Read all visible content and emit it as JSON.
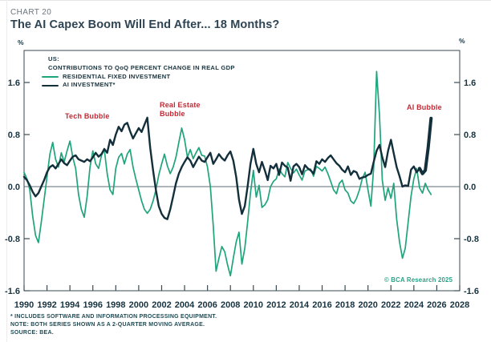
{
  "header": {
    "kicker": "CHART 20",
    "title": "The AI Capex Boom Will End After... 18 Months?"
  },
  "axis": {
    "unit_left": "%",
    "unit_right": "%"
  },
  "legend": {
    "region": "US:",
    "subtitle": "CONTRIBUTIONS TO QoQ PERCENT CHANGE IN REAL GDP",
    "items": [
      {
        "label": "RESIDENTIAL FIXED INVESTMENT",
        "color": "#1fa47c"
      },
      {
        "label": "AI INVESTMENT*",
        "color": "#132f3c"
      }
    ]
  },
  "annotations": {
    "tech": "Tech Bubble",
    "real_estate_line1": "Real Estate",
    "real_estate_line2": "Bubble",
    "ai": "AI Bubble"
  },
  "watermark": "© BCA Research 2025",
  "footnotes": [
    "* INCLUDES SOFTWARE AND INFORMATION PROCESSING EQUIPMENT.",
    "NOTE: BOTH SERIES SHOWN AS A 2-QUARTER MOVING AVERAGE.",
    "SOURCE: BEA."
  ],
  "colors": {
    "residential": "#1fa47c",
    "ai": "#132f3c",
    "annotation_red": "#c02b35",
    "frame": "#3a4a52",
    "zero_line": "#5f6e74",
    "tick_text": "#17333f",
    "watermark_teal": "#2ba186"
  },
  "chart_data": {
    "type": "line",
    "title": "US: Contributions to QoQ percent change in real GDP",
    "ylabel": "%",
    "x_axis": {
      "range": [
        1990,
        2028
      ],
      "ticks": [
        1990,
        1992,
        1994,
        1996,
        1998,
        2000,
        2002,
        2004,
        2006,
        2008,
        2010,
        2012,
        2014,
        2016,
        2018,
        2020,
        2022,
        2024,
        2026,
        2028
      ]
    },
    "y_axis": {
      "range": [
        -1.6,
        2.1
      ],
      "ticks": [
        1.6,
        0.8,
        0.0,
        -0.8,
        -1.6
      ],
      "unit": "%"
    },
    "grid": false,
    "legend_position": "top-left",
    "series": [
      {
        "name": "RESIDENTIAL FIXED INVESTMENT",
        "color": "#1fa47c",
        "width": 1.7,
        "points": [
          [
            1990,
            0.22
          ],
          [
            1990.25,
            0.12
          ],
          [
            1990.5,
            -0.05
          ],
          [
            1990.75,
            -0.45
          ],
          [
            1991,
            -0.75
          ],
          [
            1991.25,
            -0.86
          ],
          [
            1991.5,
            -0.55
          ],
          [
            1991.75,
            -0.2
          ],
          [
            1992,
            0.15
          ],
          [
            1992.25,
            0.5
          ],
          [
            1992.5,
            0.68
          ],
          [
            1992.75,
            0.42
          ],
          [
            1993,
            0.3
          ],
          [
            1993.25,
            0.52
          ],
          [
            1993.5,
            0.38
          ],
          [
            1993.75,
            0.55
          ],
          [
            1994,
            0.7
          ],
          [
            1994.25,
            0.45
          ],
          [
            1994.5,
            0.28
          ],
          [
            1994.75,
            -0.12
          ],
          [
            1995,
            -0.35
          ],
          [
            1995.25,
            -0.47
          ],
          [
            1995.5,
            -0.15
          ],
          [
            1995.75,
            0.3
          ],
          [
            1996,
            0.55
          ],
          [
            1996.25,
            0.35
          ],
          [
            1996.5,
            0.28
          ],
          [
            1996.75,
            0.48
          ],
          [
            1997,
            0.57
          ],
          [
            1997.25,
            0.2
          ],
          [
            1997.5,
            -0.05
          ],
          [
            1997.75,
            -0.12
          ],
          [
            1998,
            0.28
          ],
          [
            1998.25,
            0.45
          ],
          [
            1998.5,
            0.51
          ],
          [
            1998.75,
            0.35
          ],
          [
            1999,
            0.5
          ],
          [
            1999.25,
            0.57
          ],
          [
            1999.5,
            0.3
          ],
          [
            1999.75,
            0.12
          ],
          [
            2000,
            -0.05
          ],
          [
            2000.25,
            -0.22
          ],
          [
            2000.5,
            -0.35
          ],
          [
            2000.75,
            -0.41
          ],
          [
            2001,
            -0.35
          ],
          [
            2001.25,
            -0.22
          ],
          [
            2001.5,
            -0.05
          ],
          [
            2001.75,
            0.18
          ],
          [
            2002,
            0.35
          ],
          [
            2002.25,
            0.5
          ],
          [
            2002.5,
            0.32
          ],
          [
            2002.75,
            0.2
          ],
          [
            2003,
            0.3
          ],
          [
            2003.25,
            0.45
          ],
          [
            2003.5,
            0.68
          ],
          [
            2003.75,
            0.9
          ],
          [
            2004,
            0.72
          ],
          [
            2004.25,
            0.45
          ],
          [
            2004.5,
            0.57
          ],
          [
            2004.75,
            0.43
          ],
          [
            2005,
            0.52
          ],
          [
            2005.25,
            0.6
          ],
          [
            2005.5,
            0.48
          ],
          [
            2005.75,
            0.47
          ],
          [
            2006,
            0.3
          ],
          [
            2006.25,
            0
          ],
          [
            2006.5,
            -0.6
          ],
          [
            2006.75,
            -1.3
          ],
          [
            2007,
            -1.1
          ],
          [
            2007.25,
            -0.92
          ],
          [
            2007.5,
            -1
          ],
          [
            2007.75,
            -1.2
          ],
          [
            2008,
            -1.37
          ],
          [
            2008.25,
            -1.1
          ],
          [
            2008.5,
            -0.85
          ],
          [
            2008.75,
            -0.7
          ],
          [
            2009,
            -1.19
          ],
          [
            2009.25,
            -0.95
          ],
          [
            2009.5,
            -0.55
          ],
          [
            2009.75,
            -0.1
          ],
          [
            2010,
            0.25
          ],
          [
            2010.25,
            -0.16
          ],
          [
            2010.5,
            0.02
          ],
          [
            2010.75,
            -0.32
          ],
          [
            2011,
            -0.28
          ],
          [
            2011.25,
            -0.2
          ],
          [
            2011.5,
            0
          ],
          [
            2011.75,
            0.08
          ],
          [
            2012,
            0.12
          ],
          [
            2012.25,
            0.27
          ],
          [
            2012.5,
            0.2
          ],
          [
            2012.75,
            0.15
          ],
          [
            2013,
            0.37
          ],
          [
            2013.25,
            0.28
          ],
          [
            2013.5,
            0.21
          ],
          [
            2013.75,
            0.27
          ],
          [
            2014,
            0.18
          ],
          [
            2014.25,
            0.1
          ],
          [
            2014.5,
            0.24
          ],
          [
            2014.75,
            0.26
          ],
          [
            2015,
            0.27
          ],
          [
            2015.25,
            0.16
          ],
          [
            2015.5,
            0.31
          ],
          [
            2015.75,
            0.28
          ],
          [
            2016,
            0.24
          ],
          [
            2016.25,
            0.3
          ],
          [
            2016.5,
            0.2
          ],
          [
            2016.75,
            0.08
          ],
          [
            2017,
            -0.05
          ],
          [
            2017.25,
            -0.11
          ],
          [
            2017.5,
            0.05
          ],
          [
            2017.75,
            0.1
          ],
          [
            2018,
            -0.05
          ],
          [
            2018.25,
            -0.1
          ],
          [
            2018.5,
            -0.22
          ],
          [
            2018.75,
            -0.26
          ],
          [
            2019,
            -0.18
          ],
          [
            2019.25,
            -0.05
          ],
          [
            2019.5,
            0.12
          ],
          [
            2019.75,
            0.22
          ],
          [
            2020,
            -0.05
          ],
          [
            2020.25,
            -0.3
          ],
          [
            2020.5,
            0.3
          ],
          [
            2020.75,
            1.77
          ],
          [
            2021,
            1.1
          ],
          [
            2021.25,
            0.1
          ],
          [
            2021.5,
            -0.21
          ],
          [
            2021.75,
            -0.02
          ],
          [
            2022,
            -0.18
          ],
          [
            2022.25,
            0.05
          ],
          [
            2022.5,
            -0.5
          ],
          [
            2022.75,
            -0.85
          ],
          [
            2023,
            -1.1
          ],
          [
            2023.25,
            -0.95
          ],
          [
            2023.5,
            -0.55
          ],
          [
            2023.75,
            -0.15
          ],
          [
            2024,
            0.12
          ],
          [
            2024.25,
            0.28
          ],
          [
            2024.5,
            -0.02
          ],
          [
            2024.75,
            -0.1
          ],
          [
            2025,
            0.05
          ],
          [
            2025.25,
            -0.05
          ],
          [
            2025.5,
            -0.12
          ]
        ]
      },
      {
        "name": "AI INVESTMENT*",
        "color": "#132f3c",
        "width": 2.4,
        "emphasis": {
          "from": 2024.5,
          "width": 4
        },
        "points": [
          [
            1990,
            0.15
          ],
          [
            1990.25,
            0.1
          ],
          [
            1990.5,
            0.02
          ],
          [
            1990.75,
            -0.08
          ],
          [
            1991,
            -0.15
          ],
          [
            1991.25,
            -0.1
          ],
          [
            1991.5,
            0
          ],
          [
            1991.75,
            0.1
          ],
          [
            1992,
            0.22
          ],
          [
            1992.25,
            0.3
          ],
          [
            1992.5,
            0.33
          ],
          [
            1992.75,
            0.28
          ],
          [
            1993,
            0.35
          ],
          [
            1993.25,
            0.42
          ],
          [
            1993.5,
            0.36
          ],
          [
            1993.75,
            0.33
          ],
          [
            1994,
            0.4
          ],
          [
            1994.25,
            0.46
          ],
          [
            1994.5,
            0.48
          ],
          [
            1994.75,
            0.42
          ],
          [
            1995,
            0.4
          ],
          [
            1995.25,
            0.38
          ],
          [
            1995.5,
            0.42
          ],
          [
            1995.75,
            0.39
          ],
          [
            1996,
            0.45
          ],
          [
            1996.25,
            0.52
          ],
          [
            1996.5,
            0.46
          ],
          [
            1996.75,
            0.5
          ],
          [
            1997,
            0.58
          ],
          [
            1997.25,
            0.52
          ],
          [
            1997.5,
            0.72
          ],
          [
            1997.75,
            0.64
          ],
          [
            1998,
            0.8
          ],
          [
            1998.25,
            0.92
          ],
          [
            1998.5,
            0.85
          ],
          [
            1998.75,
            0.95
          ],
          [
            1999,
            0.98
          ],
          [
            1999.25,
            0.85
          ],
          [
            1999.5,
            0.74
          ],
          [
            1999.75,
            0.82
          ],
          [
            2000,
            0.9
          ],
          [
            2000.25,
            0.84
          ],
          [
            2000.5,
            0.95
          ],
          [
            2000.75,
            1.06
          ],
          [
            2001,
            0.6
          ],
          [
            2001.25,
            0.25
          ],
          [
            2001.5,
            -0.05
          ],
          [
            2001.75,
            -0.3
          ],
          [
            2002,
            -0.42
          ],
          [
            2002.25,
            -0.48
          ],
          [
            2002.5,
            -0.5
          ],
          [
            2002.75,
            -0.35
          ],
          [
            2003,
            -0.15
          ],
          [
            2003.25,
            0.05
          ],
          [
            2003.5,
            0.2
          ],
          [
            2003.75,
            0.3
          ],
          [
            2004,
            0.38
          ],
          [
            2004.25,
            0.45
          ],
          [
            2004.5,
            0.4
          ],
          [
            2004.75,
            0.3
          ],
          [
            2005,
            0.38
          ],
          [
            2005.25,
            0.46
          ],
          [
            2005.5,
            0.4
          ],
          [
            2005.75,
            0.38
          ],
          [
            2006,
            0.45
          ],
          [
            2006.25,
            0.52
          ],
          [
            2006.5,
            0.35
          ],
          [
            2006.75,
            0.42
          ],
          [
            2007,
            0.5
          ],
          [
            2007.25,
            0.44
          ],
          [
            2007.5,
            0.4
          ],
          [
            2007.75,
            0.48
          ],
          [
            2008,
            0.54
          ],
          [
            2008.25,
            0.4
          ],
          [
            2008.5,
            0.15
          ],
          [
            2008.75,
            -0.2
          ],
          [
            2009,
            -0.42
          ],
          [
            2009.25,
            -0.3
          ],
          [
            2009.5,
            0
          ],
          [
            2009.75,
            0.35
          ],
          [
            2010,
            0.58
          ],
          [
            2010.25,
            0.35
          ],
          [
            2010.5,
            0.22
          ],
          [
            2010.75,
            0.38
          ],
          [
            2011,
            0.25
          ],
          [
            2011.25,
            0.1
          ],
          [
            2011.5,
            0.32
          ],
          [
            2011.75,
            0.28
          ],
          [
            2012,
            0.35
          ],
          [
            2012.25,
            0.18
          ],
          [
            2012.5,
            0.37
          ],
          [
            2012.75,
            0.32
          ],
          [
            2013,
            0.29
          ],
          [
            2013.25,
            0.09
          ],
          [
            2013.5,
            0.31
          ],
          [
            2013.75,
            0.35
          ],
          [
            2014,
            0.3
          ],
          [
            2014.25,
            0.19
          ],
          [
            2014.5,
            0.33
          ],
          [
            2014.75,
            0.28
          ],
          [
            2015,
            0.25
          ],
          [
            2015.25,
            0.2
          ],
          [
            2015.5,
            0.39
          ],
          [
            2015.75,
            0.35
          ],
          [
            2016,
            0.42
          ],
          [
            2016.25,
            0.38
          ],
          [
            2016.5,
            0.44
          ],
          [
            2016.75,
            0.48
          ],
          [
            2017,
            0.42
          ],
          [
            2017.25,
            0.36
          ],
          [
            2017.5,
            0.32
          ],
          [
            2017.75,
            0.26
          ],
          [
            2018,
            0.22
          ],
          [
            2018.25,
            0.31
          ],
          [
            2018.5,
            0.18
          ],
          [
            2018.75,
            0.24
          ],
          [
            2019,
            0.22
          ],
          [
            2019.25,
            0.12
          ],
          [
            2019.5,
            0.14
          ],
          [
            2019.75,
            0.15
          ],
          [
            2020,
            0.18
          ],
          [
            2020.25,
            0.2
          ],
          [
            2020.5,
            0.38
          ],
          [
            2020.75,
            0.55
          ],
          [
            2021,
            0.64
          ],
          [
            2021.25,
            0.45
          ],
          [
            2021.5,
            0.3
          ],
          [
            2021.75,
            0.55
          ],
          [
            2022,
            0.72
          ],
          [
            2022.25,
            0.51
          ],
          [
            2022.5,
            0.3
          ],
          [
            2022.75,
            0.16
          ],
          [
            2023,
            0
          ],
          [
            2023.25,
            0.02
          ],
          [
            2023.5,
            0.01
          ],
          [
            2023.75,
            0.26
          ],
          [
            2024,
            0.31
          ],
          [
            2024.25,
            0.22
          ],
          [
            2024.5,
            0.28
          ],
          [
            2024.75,
            0.2
          ],
          [
            2025,
            0.25
          ],
          [
            2025.25,
            0.6
          ],
          [
            2025.5,
            1.05
          ]
        ]
      }
    ]
  }
}
